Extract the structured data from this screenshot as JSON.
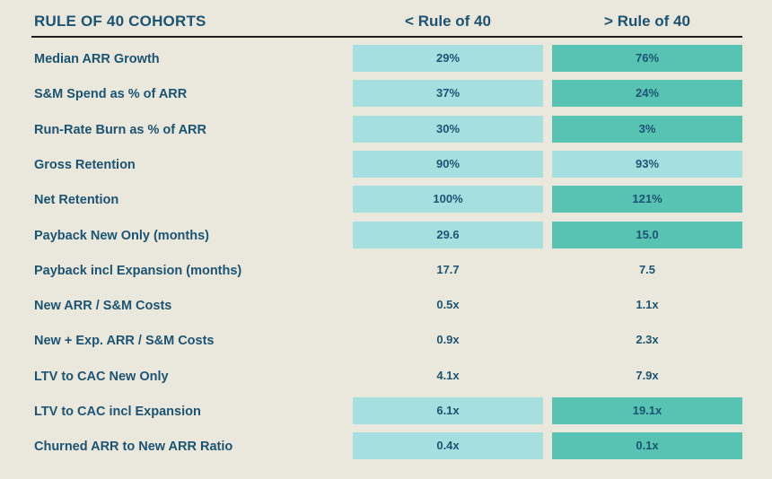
{
  "chart_data": {
    "type": "table",
    "title": "RULE OF 40 COHORTS",
    "columns": [
      "< Rule of 40",
      "> Rule of 40"
    ],
    "colors": {
      "light": "#a6dfdf",
      "dark": "#58c3b2",
      "none": "transparent"
    },
    "rows": [
      {
        "label": "Median ARR Growth",
        "values": [
          "29%",
          "76%"
        ],
        "shading": [
          "light",
          "dark"
        ]
      },
      {
        "label": "S&M Spend as % of ARR",
        "values": [
          "37%",
          "24%"
        ],
        "shading": [
          "light",
          "dark"
        ]
      },
      {
        "label": "Run-Rate Burn as % of ARR",
        "values": [
          "30%",
          "3%"
        ],
        "shading": [
          "light",
          "dark"
        ]
      },
      {
        "label": "Gross Retention",
        "values": [
          "90%",
          "93%"
        ],
        "shading": [
          "light",
          "light"
        ]
      },
      {
        "label": "Net Retention",
        "values": [
          "100%",
          "121%"
        ],
        "shading": [
          "light",
          "dark"
        ]
      },
      {
        "label": "Payback New Only (months)",
        "values": [
          "29.6",
          "15.0"
        ],
        "shading": [
          "light",
          "dark"
        ]
      },
      {
        "label": "Payback incl Expansion (months)",
        "values": [
          "17.7",
          "7.5"
        ],
        "shading": [
          "none",
          "none"
        ]
      },
      {
        "label": "New ARR / S&M Costs",
        "values": [
          "0.5x",
          "1.1x"
        ],
        "shading": [
          "none",
          "none"
        ]
      },
      {
        "label": "New + Exp. ARR / S&M Costs",
        "values": [
          "0.9x",
          "2.3x"
        ],
        "shading": [
          "none",
          "none"
        ]
      },
      {
        "label": "LTV to CAC New Only",
        "values": [
          "4.1x",
          "7.9x"
        ],
        "shading": [
          "none",
          "none"
        ]
      },
      {
        "label": "LTV to CAC incl Expansion",
        "values": [
          "6.1x",
          "19.1x"
        ],
        "shading": [
          "light",
          "dark"
        ]
      },
      {
        "label": "Churned ARR to New ARR Ratio",
        "values": [
          "0.4x",
          "0.1x"
        ],
        "shading": [
          "light",
          "dark"
        ]
      }
    ]
  }
}
